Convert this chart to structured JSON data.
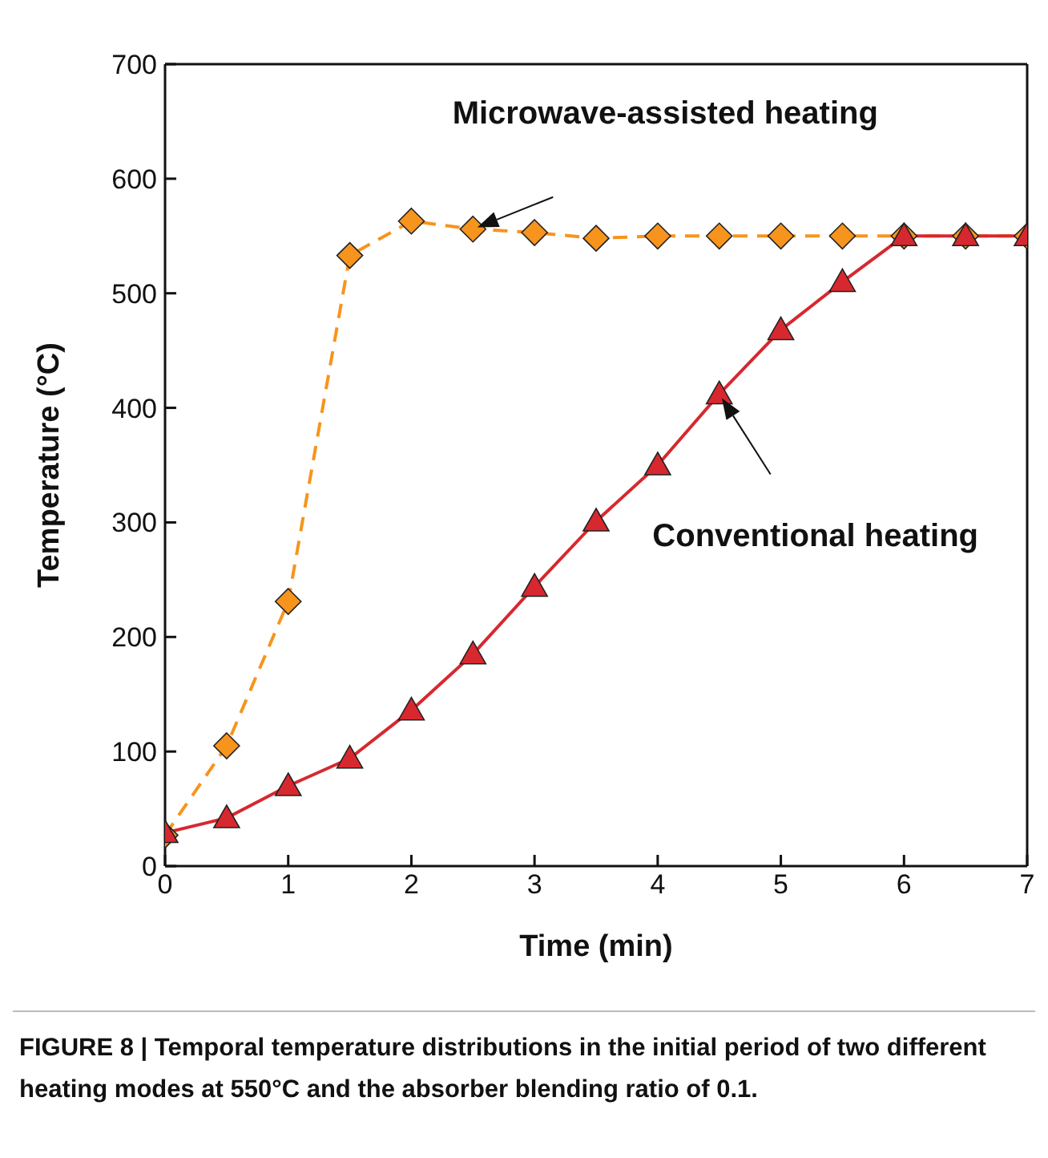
{
  "chart_data": {
    "type": "line",
    "xlabel": "Time (min)",
    "ylabel": "Temperature (°C)",
    "xlim": [
      0,
      7
    ],
    "xticks": [
      0,
      1,
      2,
      3,
      4,
      5,
      6,
      7
    ],
    "ylim": [
      0,
      700
    ],
    "yticks": [
      0,
      100,
      200,
      300,
      400,
      500,
      600,
      700
    ],
    "series": [
      {
        "name": "Microwave-assisted heating",
        "color": "#f7941d",
        "marker": "diamond",
        "line_style": "dashed",
        "x": [
          0,
          0.5,
          1,
          1.5,
          2,
          2.5,
          3,
          3.5,
          4,
          4.5,
          5,
          5.5,
          6,
          6.5,
          7
        ],
        "values": [
          27,
          105,
          231,
          533,
          563,
          556,
          553,
          548,
          550,
          550,
          550,
          550,
          550,
          550,
          550
        ]
      },
      {
        "name": "Conventional heating",
        "color": "#d7282f",
        "marker": "triangle",
        "line_style": "solid",
        "x": [
          0,
          0.5,
          1,
          1.5,
          2,
          2.5,
          3,
          3.5,
          4,
          4.5,
          5,
          5.5,
          6,
          6.5,
          7
        ],
        "values": [
          29,
          42,
          70,
          94,
          136,
          185,
          244,
          301,
          350,
          412,
          468,
          510,
          550,
          550,
          550
        ]
      }
    ],
    "annotations": [
      "FIGURE 8 | Temporal temperature distributions in the initial period of two different heating modes at 550°C and the absorber blending ratio of 0.1."
    ]
  }
}
